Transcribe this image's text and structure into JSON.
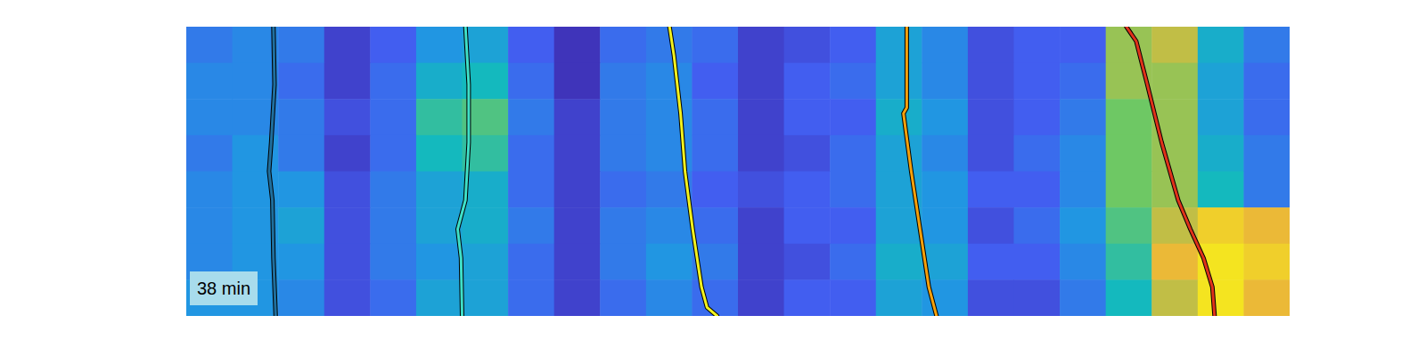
{
  "chart_data": {
    "type": "heatmap",
    "annotation": "38 min",
    "tick_labels": false,
    "xlim": [
      0,
      100
    ],
    "ylim": [
      100,
      0
    ],
    "zlim": [
      0,
      1
    ],
    "cells": [
      [
        0.3,
        0.35,
        0.3,
        0.1,
        0.2,
        0.4,
        0.45,
        0.2,
        0.05,
        0.25,
        0.3,
        0.25,
        0.1,
        0.15,
        0.2,
        0.45,
        0.35,
        0.15,
        0.2,
        0.2,
        0.75,
        0.8,
        0.5,
        0.3
      ],
      [
        0.35,
        0.35,
        0.25,
        0.1,
        0.25,
        0.5,
        0.55,
        0.25,
        0.05,
        0.3,
        0.35,
        0.2,
        0.1,
        0.2,
        0.25,
        0.45,
        0.35,
        0.15,
        0.2,
        0.25,
        0.75,
        0.75,
        0.45,
        0.25
      ],
      [
        0.35,
        0.35,
        0.3,
        0.15,
        0.25,
        0.6,
        0.65,
        0.3,
        0.1,
        0.3,
        0.35,
        0.25,
        0.1,
        0.2,
        0.2,
        0.5,
        0.4,
        0.15,
        0.2,
        0.3,
        0.7,
        0.75,
        0.45,
        0.25
      ],
      [
        0.3,
        0.4,
        0.3,
        0.1,
        0.25,
        0.55,
        0.6,
        0.25,
        0.1,
        0.3,
        0.35,
        0.25,
        0.1,
        0.15,
        0.25,
        0.45,
        0.35,
        0.15,
        0.25,
        0.35,
        0.7,
        0.75,
        0.5,
        0.3
      ],
      [
        0.35,
        0.4,
        0.4,
        0.15,
        0.3,
        0.45,
        0.5,
        0.25,
        0.1,
        0.25,
        0.3,
        0.2,
        0.15,
        0.2,
        0.25,
        0.45,
        0.4,
        0.2,
        0.2,
        0.35,
        0.7,
        0.75,
        0.55,
        0.3
      ],
      [
        0.35,
        0.4,
        0.45,
        0.15,
        0.3,
        0.45,
        0.5,
        0.3,
        0.1,
        0.3,
        0.35,
        0.25,
        0.1,
        0.2,
        0.2,
        0.45,
        0.4,
        0.15,
        0.25,
        0.4,
        0.65,
        0.8,
        0.9,
        0.85
      ],
      [
        0.35,
        0.4,
        0.4,
        0.15,
        0.3,
        0.4,
        0.45,
        0.25,
        0.1,
        0.3,
        0.4,
        0.3,
        0.1,
        0.15,
        0.25,
        0.5,
        0.45,
        0.2,
        0.2,
        0.35,
        0.6,
        0.85,
        0.95,
        0.9
      ],
      [
        0.4,
        0.4,
        0.35,
        0.15,
        0.25,
        0.45,
        0.45,
        0.25,
        0.1,
        0.25,
        0.35,
        0.25,
        0.1,
        0.2,
        0.2,
        0.45,
        0.4,
        0.15,
        0.15,
        0.3,
        0.55,
        0.8,
        0.95,
        0.85
      ]
    ],
    "series": [
      {
        "type": "line",
        "color": "#1f6f9e",
        "x": [
          7.9,
          8.0,
          7.7,
          7.5,
          7.8,
          7.9,
          8.1
        ],
        "values": [
          0,
          20,
          40,
          50,
          60,
          80,
          100
        ]
      },
      {
        "type": "line",
        "color": "#3fe0c8",
        "x": [
          25.3,
          25.6,
          25.6,
          25.3,
          24.6,
          24.9,
          25.0
        ],
        "values": [
          0,
          20,
          40,
          60,
          70,
          80,
          100
        ]
      },
      {
        "type": "line",
        "color": "#f2f21e",
        "x": [
          43.8,
          44.2,
          44.8,
          45.2,
          45.9,
          46.7,
          47.2,
          48.1
        ],
        "values": [
          0,
          10,
          30,
          50,
          70,
          90,
          97,
          100
        ]
      },
      {
        "type": "line",
        "color": "#f5a00a",
        "x": [
          65.3,
          65.3,
          65.0,
          65.7,
          66.5,
          67.3,
          68.0
        ],
        "values": [
          0,
          28,
          30,
          50,
          70,
          90,
          100
        ]
      },
      {
        "type": "line",
        "color": "#e0321a",
        "x": [
          85.2,
          86.1,
          87.1,
          88.4,
          89.9,
          91.0,
          92.2,
          93.0,
          93.2
        ],
        "values": [
          0,
          5,
          20,
          40,
          60,
          70,
          80,
          90,
          100
        ]
      }
    ]
  }
}
